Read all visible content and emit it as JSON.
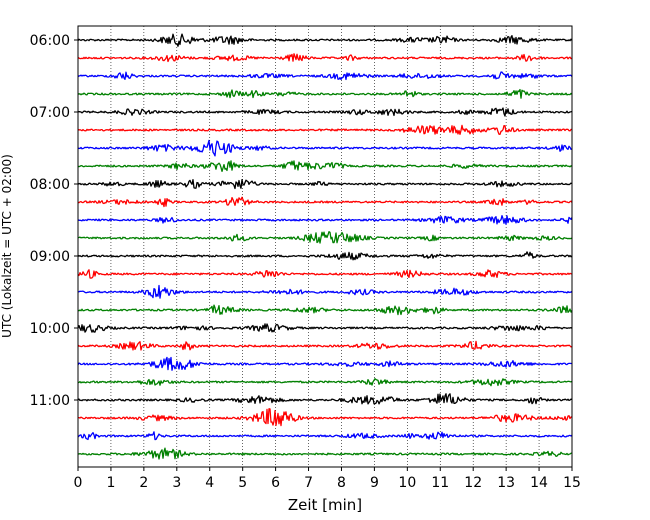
{
  "chart_data": {
    "type": "line",
    "title": "",
    "xlabel": "Zeit  [min]",
    "ylabel": "UTC (Lokalzeit = UTC + 02:00)",
    "xlim": [
      0,
      15
    ],
    "x_ticks": [
      "0",
      "1",
      "2",
      "3",
      "4",
      "5",
      "6",
      "7",
      "8",
      "9",
      "10",
      "11",
      "12",
      "13",
      "14",
      "15"
    ],
    "y_tick_labels": [
      "06:00",
      "07:00",
      "08:00",
      "09:00",
      "10:00",
      "11:00"
    ],
    "rows_per_hour": 4,
    "row_start_times": [
      "06:00",
      "06:15",
      "06:30",
      "06:45",
      "07:00",
      "07:15",
      "07:30",
      "07:45",
      "08:00",
      "08:15",
      "08:30",
      "08:45",
      "09:00",
      "09:15",
      "09:30",
      "09:45",
      "10:00",
      "10:15",
      "10:30",
      "10:45",
      "11:00",
      "11:15",
      "11:30",
      "11:45"
    ],
    "trace_colors": [
      "#000000",
      "#ff0000",
      "#0000ff",
      "#008000"
    ],
    "vertical_grid": "dotted",
    "horizontal_grid": false,
    "legend": "none"
  }
}
